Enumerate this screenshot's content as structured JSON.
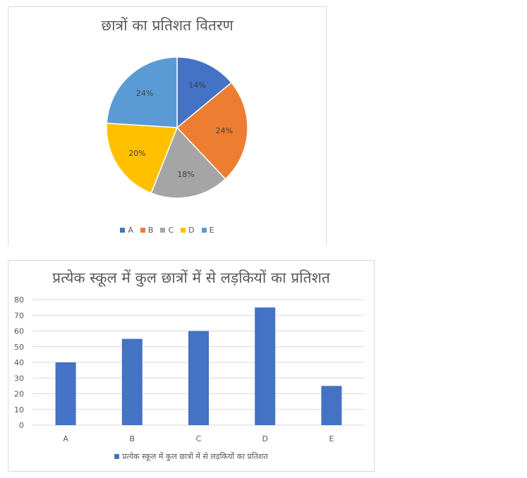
{
  "charts": [
    {
      "id": "pie",
      "chart_data": {
        "type": "pie",
        "title": "छात्रों का प्रतिशत वितरण",
        "categories": [
          "A",
          "B",
          "C",
          "D",
          "E"
        ],
        "values": [
          14,
          24,
          18,
          20,
          24
        ],
        "value_labels": [
          "14%",
          "24%",
          "18%",
          "20%",
          "24%"
        ],
        "colors": [
          "#4472c4",
          "#ed7d31",
          "#a5a5a5",
          "#ffc000",
          "#5b9bd5"
        ],
        "legend": "bottom"
      }
    },
    {
      "id": "bar",
      "chart_data": {
        "type": "bar",
        "title": "प्रत्येक स्कूल में कुल छात्रों में से लड़कियों का प्रतिशत",
        "categories": [
          "A",
          "B",
          "C",
          "D",
          "E"
        ],
        "series": [
          {
            "name": "प्रत्येक स्कूल में कुल छात्रों में से लड़कियों का प्रतिशत",
            "values": [
              40,
              55,
              60,
              75,
              25
            ],
            "color": "#4472c4"
          }
        ],
        "ylim": [
          0,
          80
        ],
        "yticks": [
          0,
          10,
          20,
          30,
          40,
          50,
          60,
          70,
          80
        ],
        "grid": true,
        "legend": "bottom"
      }
    }
  ]
}
